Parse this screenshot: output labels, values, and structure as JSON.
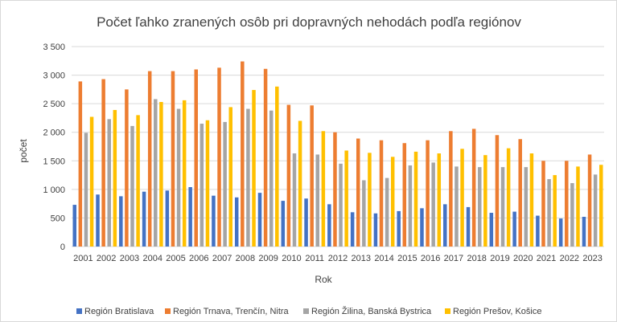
{
  "chart_data": {
    "type": "bar",
    "title": "Počet ľahko zranených osôb pri dopravných nehodách podľa regiónov",
    "xlabel": "Rok",
    "ylabel": "počet",
    "ylim": [
      0,
      3500
    ],
    "yticks": [
      "0",
      "500",
      "1 000",
      "1 500",
      "2 000",
      "2 500",
      "3 000",
      "3 500"
    ],
    "ytick_values": [
      0,
      500,
      1000,
      1500,
      2000,
      2500,
      3000,
      3500
    ],
    "grid": true,
    "legend_position": "bottom",
    "categories": [
      "2001",
      "2002",
      "2003",
      "2004",
      "2005",
      "2006",
      "2007",
      "2008",
      "2009",
      "2010",
      "2011",
      "2012",
      "2013",
      "2014",
      "2015",
      "2016",
      "2017",
      "2018",
      "2019",
      "2020",
      "2021",
      "2022",
      "2023"
    ],
    "series": [
      {
        "name": "Región Bratislava",
        "color": "#4472c4",
        "values": [
          730,
          910,
          880,
          960,
          980,
          1040,
          890,
          860,
          940,
          800,
          840,
          740,
          600,
          580,
          620,
          670,
          740,
          690,
          590,
          610,
          540,
          490,
          520
        ]
      },
      {
        "name": "Región Trnava, Trenčín, Nitra",
        "color": "#ed7d31",
        "values": [
          2890,
          2930,
          2750,
          3070,
          3070,
          3100,
          3130,
          3240,
          3110,
          2480,
          2470,
          2000,
          1890,
          1860,
          1810,
          1860,
          2020,
          2060,
          1950,
          1880,
          1500,
          1500,
          1610
        ]
      },
      {
        "name": "Región Žilina, Banská Bystrica",
        "color": "#a5a5a5",
        "values": [
          1990,
          2230,
          2110,
          2580,
          2410,
          2150,
          2180,
          2410,
          2380,
          1630,
          1610,
          1450,
          1160,
          1200,
          1420,
          1470,
          1400,
          1390,
          1390,
          1390,
          1180,
          1110,
          1260
        ]
      },
      {
        "name": "Región Prešov, Košice",
        "color": "#ffc000",
        "values": [
          2270,
          2390,
          2300,
          2530,
          2560,
          2210,
          2440,
          2740,
          2800,
          2200,
          2020,
          1680,
          1640,
          1570,
          1660,
          1630,
          1710,
          1600,
          1720,
          1630,
          1250,
          1400,
          1430
        ]
      }
    ]
  }
}
